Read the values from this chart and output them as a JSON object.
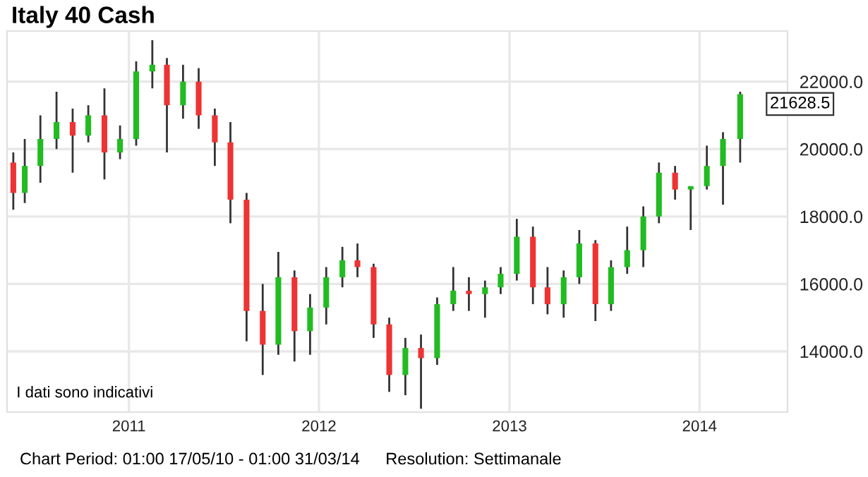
{
  "chart_data": {
    "type": "candlestick",
    "title": "Italy 40 Cash",
    "x": [
      "2010-05-24",
      "2010-06-15",
      "2010-07-15",
      "2010-08-15",
      "2010-09-15",
      "2010-10-15",
      "2010-11-15",
      "2010-12-15",
      "2011-01-15",
      "2011-02-15",
      "2011-03-15",
      "2011-04-15",
      "2011-05-15",
      "2011-06-15",
      "2011-07-15",
      "2011-08-15",
      "2011-09-15",
      "2011-10-15",
      "2011-11-15",
      "2011-12-15",
      "2012-01-15",
      "2012-02-15",
      "2012-03-15",
      "2012-04-15",
      "2012-05-15",
      "2012-06-15",
      "2012-07-15",
      "2012-08-15",
      "2012-09-15",
      "2012-10-15",
      "2012-11-15",
      "2012-12-15",
      "2013-01-15",
      "2013-02-15",
      "2013-03-15",
      "2013-04-15",
      "2013-05-15",
      "2013-06-15",
      "2013-07-15",
      "2013-08-15",
      "2013-09-15",
      "2013-10-15",
      "2013-11-15",
      "2013-12-15",
      "2014-01-15",
      "2014-02-15",
      "2014-03-20"
    ],
    "ohlc": [
      [
        19600,
        19900,
        18200,
        18700
      ],
      [
        18700,
        20300,
        18400,
        19500
      ],
      [
        19500,
        21000,
        19000,
        20300
      ],
      [
        20300,
        21700,
        20000,
        20800
      ],
      [
        20800,
        21200,
        19300,
        20400
      ],
      [
        20400,
        21300,
        20200,
        21000
      ],
      [
        21000,
        21800,
        19100,
        19900
      ],
      [
        19900,
        20700,
        19700,
        20300
      ],
      [
        20300,
        22600,
        20100,
        22300
      ],
      [
        22300,
        23230,
        21800,
        22500
      ],
      [
        22500,
        22700,
        19900,
        21300
      ],
      [
        21300,
        22500,
        20900,
        22000
      ],
      [
        22000,
        22400,
        20600,
        21000
      ],
      [
        21000,
        21200,
        19500,
        20200
      ],
      [
        20200,
        20800,
        17800,
        18500
      ],
      [
        18500,
        18700,
        14300,
        15200
      ],
      [
        15200,
        16000,
        13300,
        14200
      ],
      [
        14200,
        16950,
        13900,
        16200
      ],
      [
        16200,
        16400,
        13700,
        14600
      ],
      [
        14600,
        15700,
        13900,
        15300
      ],
      [
        15300,
        16500,
        14800,
        16200
      ],
      [
        16200,
        17100,
        15900,
        16700
      ],
      [
        16700,
        17200,
        16200,
        16500
      ],
      [
        16500,
        16600,
        14400,
        14800
      ],
      [
        14800,
        15000,
        12800,
        13300
      ],
      [
        13300,
        14400,
        12700,
        14100
      ],
      [
        14100,
        14500,
        12300,
        13800
      ],
      [
        13800,
        15600,
        13600,
        15400
      ],
      [
        15400,
        16500,
        15200,
        15800
      ],
      [
        15800,
        16200,
        15200,
        15700
      ],
      [
        15700,
        16100,
        15000,
        15900
      ],
      [
        15900,
        16500,
        15700,
        16300
      ],
      [
        16300,
        17930,
        16100,
        17400
      ],
      [
        17400,
        17700,
        15400,
        15900
      ],
      [
        15900,
        16500,
        15100,
        15400
      ],
      [
        15400,
        16400,
        15000,
        16200
      ],
      [
        16200,
        17600,
        16000,
        17200
      ],
      [
        17200,
        17300,
        14900,
        15400
      ],
      [
        15400,
        16700,
        15200,
        16500
      ],
      [
        16500,
        17700,
        16300,
        17000
      ],
      [
        17000,
        18300,
        16500,
        18000
      ],
      [
        18000,
        19600,
        17800,
        19300
      ],
      [
        19300,
        19500,
        18500,
        18800
      ],
      [
        18800,
        18900,
        17600,
        18900
      ],
      [
        18900,
        20100,
        18800,
        19500
      ],
      [
        19500,
        20500,
        18350,
        20300
      ],
      [
        20300,
        21700,
        19600,
        21628.5
      ]
    ],
    "xlim": [
      "2010-05-12",
      "2014-06-19"
    ],
    "xticks": [
      {
        "value": "2011-01-01",
        "label": "2011"
      },
      {
        "value": "2012-01-01",
        "label": "2012"
      },
      {
        "value": "2013-01-01",
        "label": "2013"
      },
      {
        "value": "2014-01-01",
        "label": "2014"
      }
    ],
    "ylim": [
      12200,
      23500
    ],
    "yticks": [
      {
        "value": 14000,
        "label": "14000.0"
      },
      {
        "value": 16000,
        "label": "16000.0"
      },
      {
        "value": 18000,
        "label": "18000.0"
      },
      {
        "value": 20000,
        "label": "20000.0"
      },
      {
        "value": 22000,
        "label": "22000.0"
      }
    ],
    "grid": true,
    "annotations": [
      "21628.5",
      "I dati sono indicativi",
      "Chart Period: 01:00 17/05/10 - 01:00 31/03/14",
      "Resolution: Settimanale"
    ]
  }
}
